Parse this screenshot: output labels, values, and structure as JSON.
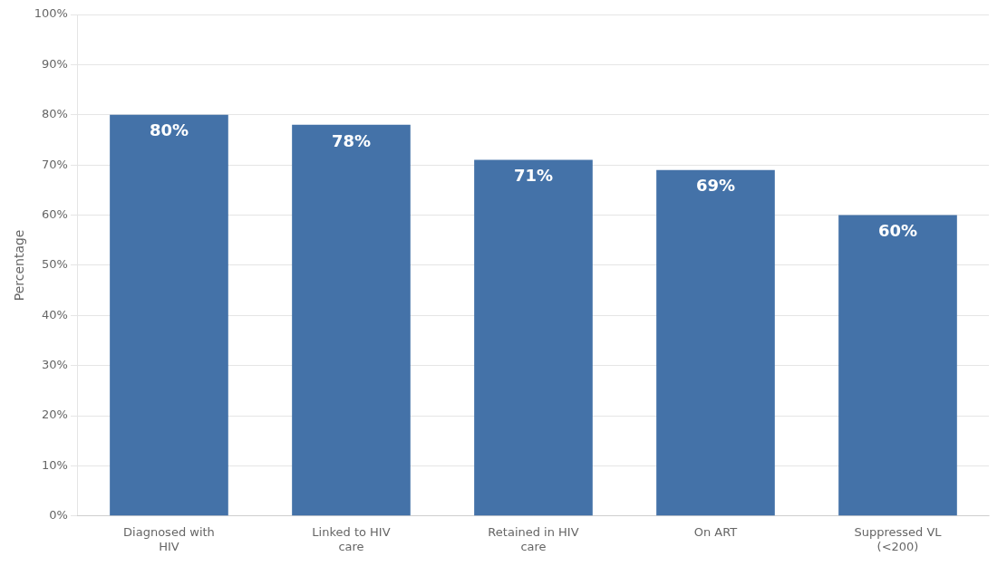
{
  "chart_data": {
    "type": "bar",
    "categories": [
      "Diagnosed with\nHIV",
      "Linked to HIV\ncare",
      "Retained in HIV\ncare",
      "On ART",
      "Suppressed VL\n(<200)"
    ],
    "values": [
      80,
      78,
      71,
      69,
      60
    ],
    "value_labels": [
      "80%",
      "78%",
      "71%",
      "69%",
      "60%"
    ],
    "data_labels": true,
    "color": "#4472a8",
    "ylabel": "Percentage",
    "ylim": [
      0,
      100
    ],
    "yticks": [
      {
        "value": 0,
        "label": "0%"
      },
      {
        "value": 10,
        "label": "10%"
      },
      {
        "value": 20,
        "label": "20%"
      },
      {
        "value": 30,
        "label": "30%"
      },
      {
        "value": 40,
        "label": "40%"
      },
      {
        "value": 50,
        "label": "50%"
      },
      {
        "value": 60,
        "label": "60%"
      },
      {
        "value": 70,
        "label": "70%"
      },
      {
        "value": 80,
        "label": "80%"
      },
      {
        "value": 90,
        "label": "90%"
      },
      {
        "value": 100,
        "label": "100%"
      }
    ],
    "grid": true
  }
}
